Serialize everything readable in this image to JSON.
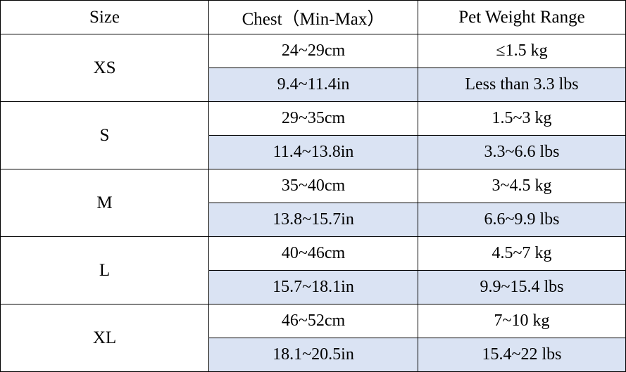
{
  "table": {
    "headers": [
      "Size",
      "Chest（Min-Max）",
      "Pet Weight Range"
    ],
    "rows": [
      {
        "size": "XS",
        "metric": {
          "chest": "24~29cm",
          "weight": "≤1.5 kg"
        },
        "imperial": {
          "chest": "9.4~11.4in",
          "weight": "Less than 3.3 lbs"
        }
      },
      {
        "size": "S",
        "metric": {
          "chest": "29~35cm",
          "weight": "1.5~3 kg"
        },
        "imperial": {
          "chest": "11.4~13.8in",
          "weight": "3.3~6.6 lbs"
        }
      },
      {
        "size": "M",
        "metric": {
          "chest": "35~40cm",
          "weight": "3~4.5 kg"
        },
        "imperial": {
          "chest": "13.8~15.7in",
          "weight": "6.6~9.9 lbs"
        }
      },
      {
        "size": "L",
        "metric": {
          "chest": "40~46cm",
          "weight": "4.5~7 kg"
        },
        "imperial": {
          "chest": "15.7~18.1in",
          "weight": "9.9~15.4 lbs"
        }
      },
      {
        "size": "XL",
        "metric": {
          "chest": "46~52cm",
          "weight": "7~10 kg"
        },
        "imperial": {
          "chest": "18.1~20.5in",
          "weight": "15.4~22 lbs"
        }
      }
    ],
    "highlight_color": "#dae3f3"
  }
}
